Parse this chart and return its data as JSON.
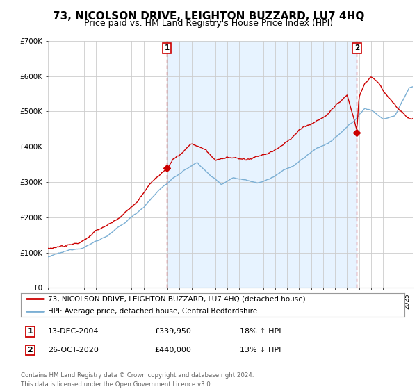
{
  "title": "73, NICOLSON DRIVE, LEIGHTON BUZZARD, LU7 4HQ",
  "subtitle": "Price paid vs. HM Land Registry's House Price Index (HPI)",
  "legend_line1": "73, NICOLSON DRIVE, LEIGHTON BUZZARD, LU7 4HQ (detached house)",
  "legend_line2": "HPI: Average price, detached house, Central Bedfordshire",
  "annotation1_label": "1",
  "annotation1_date": "13-DEC-2004",
  "annotation1_price": "£339,950",
  "annotation1_hpi": "18% ↑ HPI",
  "annotation2_label": "2",
  "annotation2_date": "26-OCT-2020",
  "annotation2_price": "£440,000",
  "annotation2_hpi": "13% ↓ HPI",
  "footer": "Contains HM Land Registry data © Crown copyright and database right 2024.\nThis data is licensed under the Open Government Licence v3.0.",
  "sale1_x": 2004.95,
  "sale1_y": 339950,
  "sale2_x": 2020.82,
  "sale2_y": 440000,
  "hpi_color": "#7bafd4",
  "sale_color": "#cc0000",
  "vline_color": "#cc0000",
  "shade_color": "#ddeeff",
  "ylim": [
    0,
    700000
  ],
  "xlim_start": 1995.0,
  "xlim_end": 2025.5,
  "background_color": "#ffffff",
  "grid_color": "#cccccc",
  "title_fontsize": 11,
  "subtitle_fontsize": 9
}
